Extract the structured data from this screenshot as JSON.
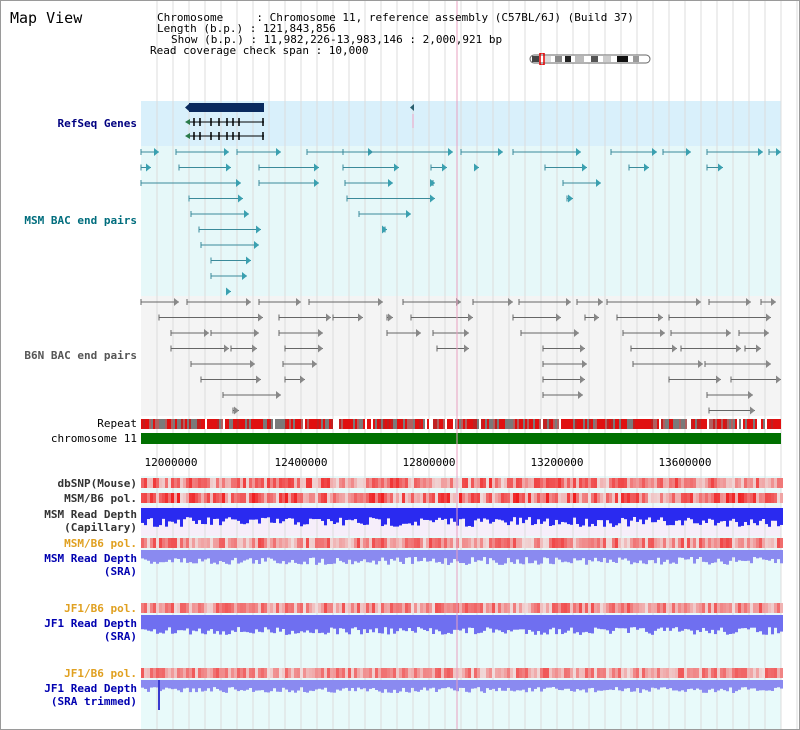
{
  "view": {
    "title": "Map View"
  },
  "info": {
    "chromosome_line": "Chromosome     : Chromosome 11, reference assembly (C57BL/6J) (Build 37)",
    "length_line": "Length (b.p.) : 121,843,856",
    "show_line": "Show (b.p.) : 11,982,226-13,983,146 : 2,000,921 bp",
    "coverage_line": "Read coverage check span : 10,000"
  },
  "tracks": {
    "refseq_genes": {
      "label": "RefSeq Genes",
      "color": "#000080"
    },
    "msm_bac": {
      "label": "MSM BAC end pairs",
      "color": "#006d7d"
    },
    "b6n_bac": {
      "label": "B6N BAC end pairs",
      "color": "#555555"
    },
    "repeat": {
      "label": "Repeat",
      "color": "#000000"
    },
    "chromosome": {
      "label": "chromosome 11",
      "color": "#000000"
    },
    "dbsnp": {
      "label": "dbSNP(Mouse)",
      "color": "#333333"
    },
    "msm_b6_pol": {
      "label": "MSM/B6 pol.",
      "color": "#333333"
    },
    "msm_depth_cap": {
      "label": "MSM Read Depth\n(Capillary)",
      "color": "#333333"
    },
    "msm_b6_pol_2": {
      "label": "MSM/B6 pol.",
      "color": "#e0a020"
    },
    "msm_depth_sra": {
      "label": "MSM Read Depth\n(SRA)",
      "color": "#0000b0"
    },
    "jf1_b6_pol": {
      "label": "JF1/B6 pol.",
      "color": "#e0a020"
    },
    "jf1_depth_sra": {
      "label": "JF1 Read Depth\n(SRA)",
      "color": "#0000b0"
    },
    "jf1_b6_pol_2": {
      "label": "JF1/B6 pol.",
      "color": "#e0a020"
    },
    "jf1_depth_trim": {
      "label": "JF1 Read Depth\n(SRA trimmed)",
      "color": "#0000b0"
    }
  },
  "axis": {
    "ticks": [
      "12000000",
      "12400000",
      "12800000",
      "13200000",
      "13600000"
    ]
  },
  "colors": {
    "refseq_bg": "#d9f0fb",
    "bac_bg": "#e6f8f9",
    "b6n_bg": "#f4f4f4",
    "chromosome_bar": "#007000",
    "gene_block": "#0a2a5e",
    "depth_blue": "#2a2af0",
    "depth_light": "#8a8af0",
    "pol_red": "#ee3333",
    "pol_pink": "#f4b0b0"
  }
}
